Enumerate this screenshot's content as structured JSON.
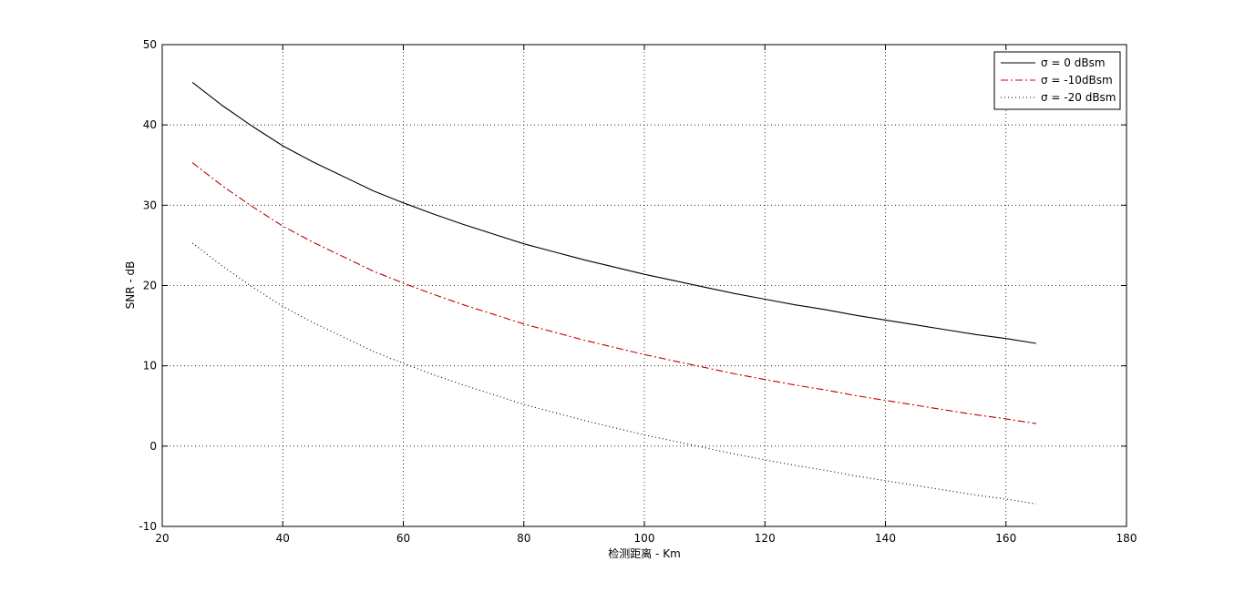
{
  "chart_data": {
    "type": "line",
    "xlabel": "检测距离 - Km",
    "ylabel": "SNR - dB",
    "xlim": [
      20,
      180
    ],
    "ylim": [
      -10,
      50
    ],
    "xticks": [
      20,
      40,
      60,
      80,
      100,
      120,
      140,
      160,
      180
    ],
    "yticks": [
      -10,
      0,
      10,
      20,
      30,
      40,
      50
    ],
    "grid": true,
    "legend_position": "top-right",
    "series": [
      {
        "name": "σ = 0 dBsm",
        "color": "#000000",
        "linestyle": "solid",
        "x": [
          25,
          30,
          35,
          40,
          45,
          50,
          55,
          60,
          65,
          70,
          75,
          80,
          85,
          90,
          95,
          100,
          105,
          110,
          115,
          120,
          125,
          130,
          135,
          140,
          145,
          150,
          155,
          160,
          165
        ],
        "values": [
          45.3,
          42.4,
          39.8,
          37.4,
          35.4,
          33.6,
          31.8,
          30.3,
          28.9,
          27.6,
          26.4,
          25.2,
          24.2,
          23.2,
          22.3,
          21.4,
          20.6,
          19.8,
          19.0,
          18.3,
          17.6,
          17.0,
          16.3,
          15.7,
          15.1,
          14.5,
          13.9,
          13.4,
          12.8
        ]
      },
      {
        "name": "σ = -10dBsm",
        "color": "#c00000",
        "linestyle": "dashdot",
        "x": [
          25,
          30,
          35,
          40,
          45,
          50,
          55,
          60,
          65,
          70,
          75,
          80,
          85,
          90,
          95,
          100,
          105,
          110,
          115,
          120,
          125,
          130,
          135,
          140,
          145,
          150,
          155,
          160,
          165
        ],
        "values": [
          35.3,
          32.4,
          29.8,
          27.4,
          25.4,
          23.6,
          21.8,
          20.3,
          18.9,
          17.6,
          16.4,
          15.2,
          14.2,
          13.2,
          12.3,
          11.4,
          10.6,
          9.8,
          9.0,
          8.3,
          7.6,
          7.0,
          6.3,
          5.7,
          5.1,
          4.5,
          3.9,
          3.4,
          2.8
        ]
      },
      {
        "name": "σ = -20 dBsm",
        "color": "#000000",
        "linestyle": "dotted",
        "x": [
          25,
          30,
          35,
          40,
          45,
          50,
          55,
          60,
          65,
          70,
          75,
          80,
          85,
          90,
          95,
          100,
          105,
          110,
          115,
          120,
          125,
          130,
          135,
          140,
          145,
          150,
          155,
          160,
          165
        ],
        "values": [
          25.3,
          22.4,
          19.8,
          17.4,
          15.4,
          13.6,
          11.8,
          10.3,
          8.9,
          7.6,
          6.4,
          5.2,
          4.2,
          3.2,
          2.3,
          1.4,
          0.6,
          -0.2,
          -1.0,
          -1.7,
          -2.4,
          -3.0,
          -3.7,
          -4.3,
          -4.9,
          -5.5,
          -6.1,
          -6.6,
          -7.2
        ]
      }
    ]
  }
}
